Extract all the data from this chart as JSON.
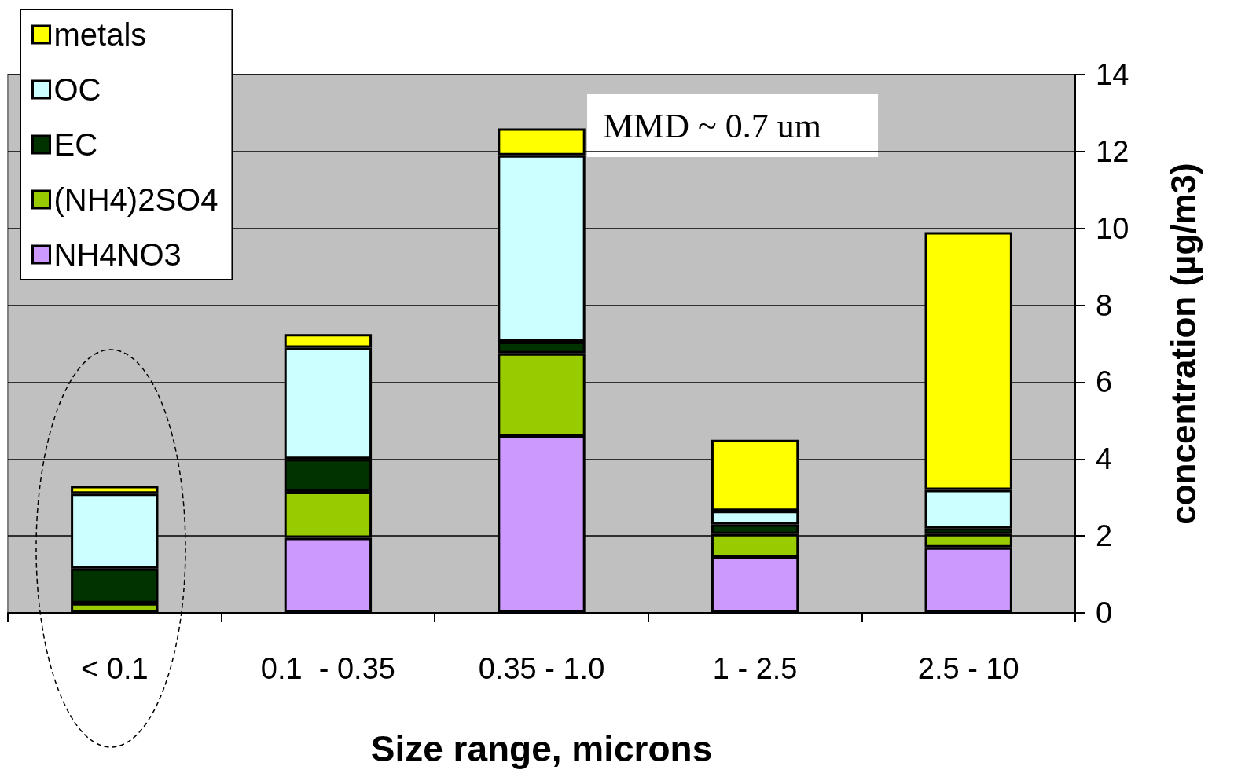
{
  "chart_data": {
    "type": "bar",
    "stacked": true,
    "xlabel": "Size range, microns",
    "ylabel": "concentration (µg/m3)",
    "categories": [
      "< 0.1",
      "0.1  - 0.35",
      "0.35 - 1.0",
      "1 - 2.5",
      "2.5 - 10"
    ],
    "series": [
      {
        "name": "NH4NO3",
        "color": "#cc99ff",
        "values": [
          0,
          1.95,
          4.6,
          1.45,
          1.7
        ]
      },
      {
        "name": "(NH4)2SO4",
        "color": "#99cc00",
        "values": [
          0.25,
          1.2,
          2.15,
          0.6,
          0.35
        ]
      },
      {
        "name": "EC",
        "color": "#003300",
        "values": [
          0.9,
          0.85,
          0.3,
          0.25,
          0.15
        ]
      },
      {
        "name": "OC",
        "color": "#ccffff",
        "values": [
          1.95,
          2.9,
          4.85,
          0.35,
          1.0
        ]
      },
      {
        "name": "metals",
        "color": "#ffff00",
        "values": [
          0.2,
          0.35,
          0.7,
          1.85,
          6.7
        ]
      }
    ],
    "ylim": [
      0,
      14
    ],
    "yticks": [
      0,
      2,
      4,
      6,
      8,
      10,
      12,
      14
    ],
    "grid": "y",
    "legend": "top left",
    "annotations": [
      "MMD ~ 0.7 um"
    ]
  }
}
